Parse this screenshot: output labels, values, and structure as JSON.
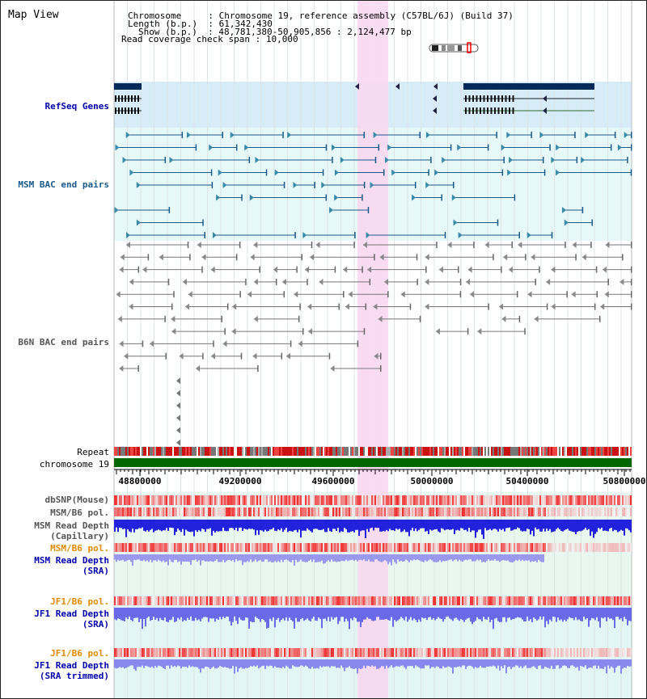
{
  "page_title": "Map View",
  "info": {
    "chromosome_key": "Chromosome",
    "chromosome_value": "Chromosome 19, reference assembly (C57BL/6J) (Build 37)",
    "length_key": "Length (b.p.)",
    "length_value": "61,342,430",
    "show_key": "Show (b.p.)",
    "show_value": "48,781,380-50,905,856 : 2,124,477 bp",
    "coverage_key": "Read coverage check span",
    "coverage_value": "10,000"
  },
  "tracks": {
    "refseq": "RefSeq Genes",
    "msm_bac": "MSM BAC end pairs",
    "b6n_bac": "B6N BAC end pairs",
    "repeat": "Repeat",
    "chromosome": "chromosome 19",
    "dbsnp": "dbSNP(Mouse)",
    "msm_b6_pol_1": "MSM/B6 pol.",
    "msm_read_depth_cap_1": "MSM Read Depth",
    "msm_read_depth_cap_2": "(Capillary)",
    "msm_b6_pol_2": "MSM/B6 pol.",
    "msm_read_depth_sra_1": "MSM Read Depth",
    "msm_read_depth_sra_2": "(SRA)",
    "jf1_b6_pol_1": "JF1/B6 pol.",
    "jf1_read_depth_sra_1": "JF1 Read Depth",
    "jf1_read_depth_sra_2": "(SRA)",
    "jf1_b6_pol_2": "JF1/B6 pol.",
    "jf1_read_depth_trim_1": "JF1 Read Depth",
    "jf1_read_depth_trim_2": "(SRA trimmed)"
  },
  "axis": {
    "ticks": [
      "48800000",
      "49200000",
      "49600000",
      "50000000",
      "50400000",
      "50800000"
    ]
  },
  "colors": {
    "refseq_label": "#0000aa",
    "msm_label": "#1a5a8a",
    "b6n_label": "#555555",
    "pol_label": "#e08a00",
    "depth_label": "#0000aa",
    "highlight": "#f8d8f0",
    "refseq_bg": "#d6ecf8",
    "msm_bg": "#e6f8f8",
    "chromosome_bar": "#006600"
  }
}
